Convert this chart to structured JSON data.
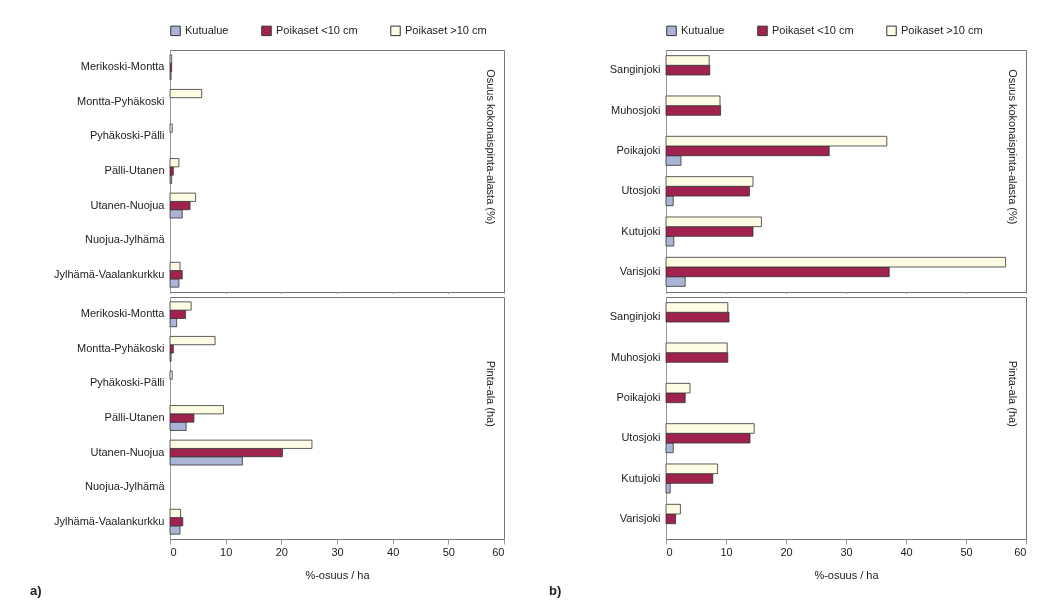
{
  "chart_data": [
    {
      "type": "bar",
      "orientation": "horizontal",
      "categories": [
        "Merikoski-Montta",
        "Montta-Pyhäkoski",
        "Pyhäkoski-Pälli",
        "Pälli-Utanen",
        "Utanen-Nuojua",
        "Nuojua-Jylhämä",
        "Jylhämä-Vaalankurkku"
      ],
      "series": [
        {
          "name": "Kutualue",
          "color": "#a9b4d6",
          "values": [
            0.2,
            null,
            null,
            0.3,
            2.2,
            null,
            1.6
          ]
        },
        {
          "name": "Poikaset <10 cm",
          "color": "#a0234f",
          "values": [
            0.3,
            null,
            null,
            0.6,
            3.6,
            null,
            2.2
          ]
        },
        {
          "name": "Poikaset >10 cm",
          "color": "#fdfbe3",
          "values": [
            0.3,
            5.7,
            0.4,
            1.6,
            4.6,
            null,
            1.8
          ]
        }
      ],
      "xlim": [
        0,
        60
      ],
      "xticks": [
        0,
        10,
        20,
        30,
        40,
        50,
        60
      ],
      "tick_labels": "y",
      "legend": "top",
      "annotations": [
        "Osuus kokonaispinta-alasta (%)"
      ]
    },
    {
      "type": "bar",
      "orientation": "horizontal",
      "categories": [
        "Merikoski-Montta",
        "Montta-Pyhäkoski",
        "Pyhäkoski-Pälli",
        "Pälli-Utanen",
        "Utanen-Nuojua",
        "Nuojua-Jylhämä",
        "Jylhämä-Vaalankurkku"
      ],
      "series": [
        {
          "color": "#a9b4d6",
          "values": [
            1.2,
            0.2,
            null,
            2.9,
            13.0,
            null,
            1.8
          ]
        },
        {
          "color": "#a0234f",
          "values": [
            2.8,
            0.6,
            null,
            4.3,
            20.2,
            null,
            2.3
          ]
        },
        {
          "color": "#fdfbe3",
          "values": [
            3.8,
            8.1,
            0.4,
            9.6,
            25.5,
            null,
            1.9
          ]
        }
      ],
      "xlim": [
        0,
        60
      ],
      "xticks": [
        0,
        10,
        20,
        30,
        40,
        50,
        60
      ],
      "xlabel": "%-osuus / ha",
      "annotations": [
        "Pinta-ala (ha)",
        "a)"
      ]
    },
    {
      "type": "bar",
      "orientation": "horizontal",
      "categories": [
        "Sanginjoki",
        "Muhosjoki",
        "Poikajoki",
        "Utosjoki",
        "Kutujoki",
        "Varisjoki"
      ],
      "series": [
        {
          "name": "Kutualue",
          "color": "#a9b4d6",
          "values": [
            null,
            null,
            2.5,
            1.2,
            1.3,
            3.2
          ]
        },
        {
          "name": "Poikaset <10 cm",
          "color": "#a0234f",
          "values": [
            7.3,
            9.1,
            27.2,
            13.9,
            14.5,
            37.2
          ]
        },
        {
          "name": "Poikaset >10 cm",
          "color": "#fdfbe3",
          "values": [
            7.2,
            9.0,
            36.8,
            14.5,
            15.9,
            56.6
          ]
        }
      ],
      "xlim": [
        0,
        60
      ],
      "xticks": [
        0,
        10,
        20,
        30,
        40,
        50,
        60
      ],
      "tick_labels": "y",
      "legend": "top",
      "annotations": [
        "Osuus kokonaispinta-alasta (%)"
      ]
    },
    {
      "type": "bar",
      "orientation": "horizontal",
      "categories": [
        "Sanginjoki",
        "Muhosjoki",
        "Poikajoki",
        "Utosjoki",
        "Kutujoki",
        "Varisjoki"
      ],
      "series": [
        {
          "color": "#a9b4d6",
          "values": [
            null,
            null,
            null,
            1.2,
            0.7,
            null
          ]
        },
        {
          "color": "#a0234f",
          "values": [
            10.5,
            10.3,
            3.2,
            14.0,
            7.8,
            1.6
          ]
        },
        {
          "color": "#fdfbe3",
          "values": [
            10.3,
            10.2,
            4.0,
            14.7,
            8.6,
            2.4
          ]
        }
      ],
      "xlim": [
        0,
        60
      ],
      "xticks": [
        0,
        10,
        20,
        30,
        40,
        50,
        60
      ],
      "xlabel": "%-osuus / ha",
      "annotations": [
        "Pinta-ala (ha)",
        "b)"
      ]
    }
  ]
}
